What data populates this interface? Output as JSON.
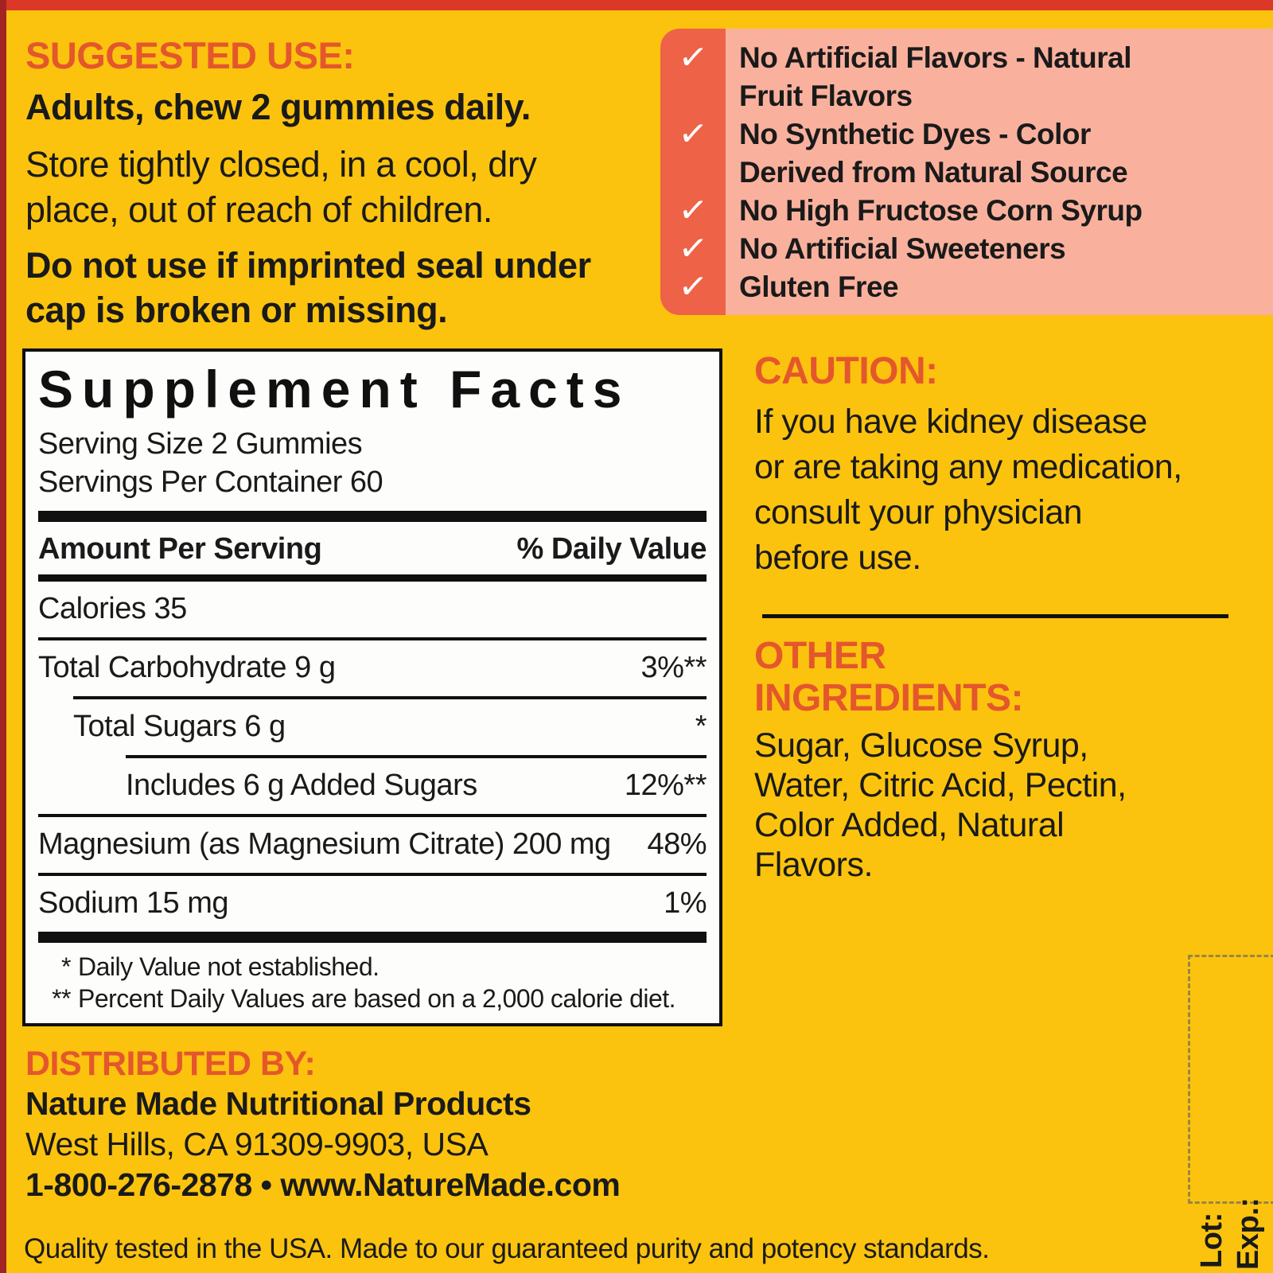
{
  "colors": {
    "bg-yellow": "#fbc30e",
    "top-bar-red": "#db3827",
    "left-strip-red": "#a32322",
    "check-strip-orange": "#ee6247",
    "panel-pink": "#f9b19d",
    "heading-orange": "#e4572c",
    "ink": "#1a1a1a",
    "dash-olive": "#8a7b4e"
  },
  "suggested_use": {
    "heading": "SUGGESTED USE:",
    "dose": "Adults, chew 2 gummies daily.",
    "storage": "Store tightly closed, in a cool, dry place, out of reach of children.",
    "seal": "Do not use if imprinted seal under cap is broken or missing."
  },
  "checklist": {
    "check_icon": "✓",
    "items": [
      "No Artificial Flavors - Natural Fruit Flavors",
      "No Synthetic Dyes - Color Derived from Natural Source",
      "No High Fructose Corn Syrup",
      "No Artificial Sweeteners",
      "Gluten Free"
    ]
  },
  "supplement_facts": {
    "title": "Supplement Facts",
    "serving_size": "Serving Size 2 Gummies",
    "servings_per_container": "Servings Per Container 60",
    "col_amount": "Amount Per Serving",
    "col_dv": "% Daily Value",
    "calories": "Calories 35",
    "rows": [
      {
        "label": "Total Carbohydrate 9 g",
        "dv": "3%**"
      },
      {
        "label": "Total Sugars 6 g",
        "dv": "*"
      },
      {
        "label": "Includes 6 g Added Sugars",
        "dv": "12%**"
      },
      {
        "label": "Magnesium (as Magnesium Citrate) 200 mg",
        "dv": "48%"
      },
      {
        "label": "Sodium 15 mg",
        "dv": "1%"
      }
    ],
    "footnotes": [
      {
        "mark": "*",
        "text": "Daily Value not established."
      },
      {
        "mark": "**",
        "text": "Percent Daily Values are based on a 2,000 calorie diet."
      }
    ]
  },
  "caution": {
    "heading": "CAUTION:",
    "text": "If you have kidney disease or are taking any medication, consult your physician before use."
  },
  "other_ingredients": {
    "heading": "OTHER INGREDIENTS:",
    "text": "Sugar, Glucose Syrup, Water, Citric Acid, Pectin, Color Added, Natural Flavors."
  },
  "distributed_by": {
    "heading": "DISTRIBUTED BY:",
    "company": "Nature Made Nutritional Products",
    "address": "West Hills, CA 91309-9903, USA",
    "phone_web": "1-800-276-2878 • www.NatureMade.com"
  },
  "footer": {
    "quality": "Quality tested in the USA. Made to our guaranteed purity and potency standards."
  },
  "lot_exp": {
    "lot_label": "Lot:",
    "exp_label": "Exp.:"
  }
}
